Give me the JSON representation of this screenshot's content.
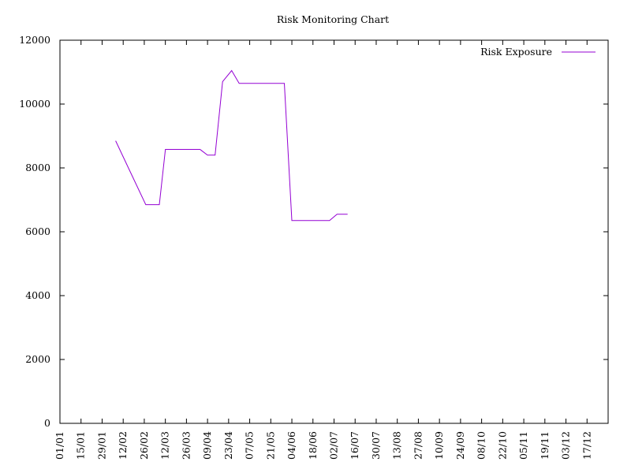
{
  "chart_data": {
    "type": "line",
    "title": "Risk Monitoring Chart",
    "xlabel": "",
    "ylabel": "",
    "grid": false,
    "legend_position": "top-right",
    "ylim": [
      0,
      12000
    ],
    "yticks": [
      0,
      2000,
      4000,
      6000,
      8000,
      10000,
      12000
    ],
    "y_tick_labels": [
      "0",
      "2000",
      "4000",
      "6000",
      "8000",
      "10000",
      "12000"
    ],
    "xlim": [
      "01/01",
      "31/12"
    ],
    "x_tick_labels": [
      "01/01",
      "15/01",
      "29/01",
      "12/02",
      "26/02",
      "12/03",
      "26/03",
      "09/04",
      "23/04",
      "07/05",
      "21/05",
      "04/06",
      "18/06",
      "02/07",
      "16/07",
      "30/07",
      "13/08",
      "27/08",
      "10/09",
      "24/09",
      "08/10",
      "22/10",
      "05/11",
      "19/11",
      "03/12",
      "17/12"
    ],
    "series": [
      {
        "name": "Risk Exposure",
        "color": "#9400d3",
        "x": [
          "07/02",
          "17/02",
          "27/02",
          "08/03",
          "12/03",
          "22/03",
          "31/03",
          "04/04",
          "09/04",
          "14/04",
          "19/04",
          "25/04",
          "30/04",
          "05/05",
          "15/05",
          "25/05",
          "30/05",
          "04/06",
          "14/06",
          "24/06",
          "29/06",
          "04/07",
          "11/07"
        ],
        "values": [
          8850,
          7850,
          6850,
          6850,
          8580,
          8580,
          8580,
          8580,
          8400,
          8400,
          10700,
          11050,
          10650,
          10650,
          10650,
          10650,
          10650,
          6350,
          6350,
          6350,
          6350,
          6550,
          6550
        ]
      }
    ]
  }
}
